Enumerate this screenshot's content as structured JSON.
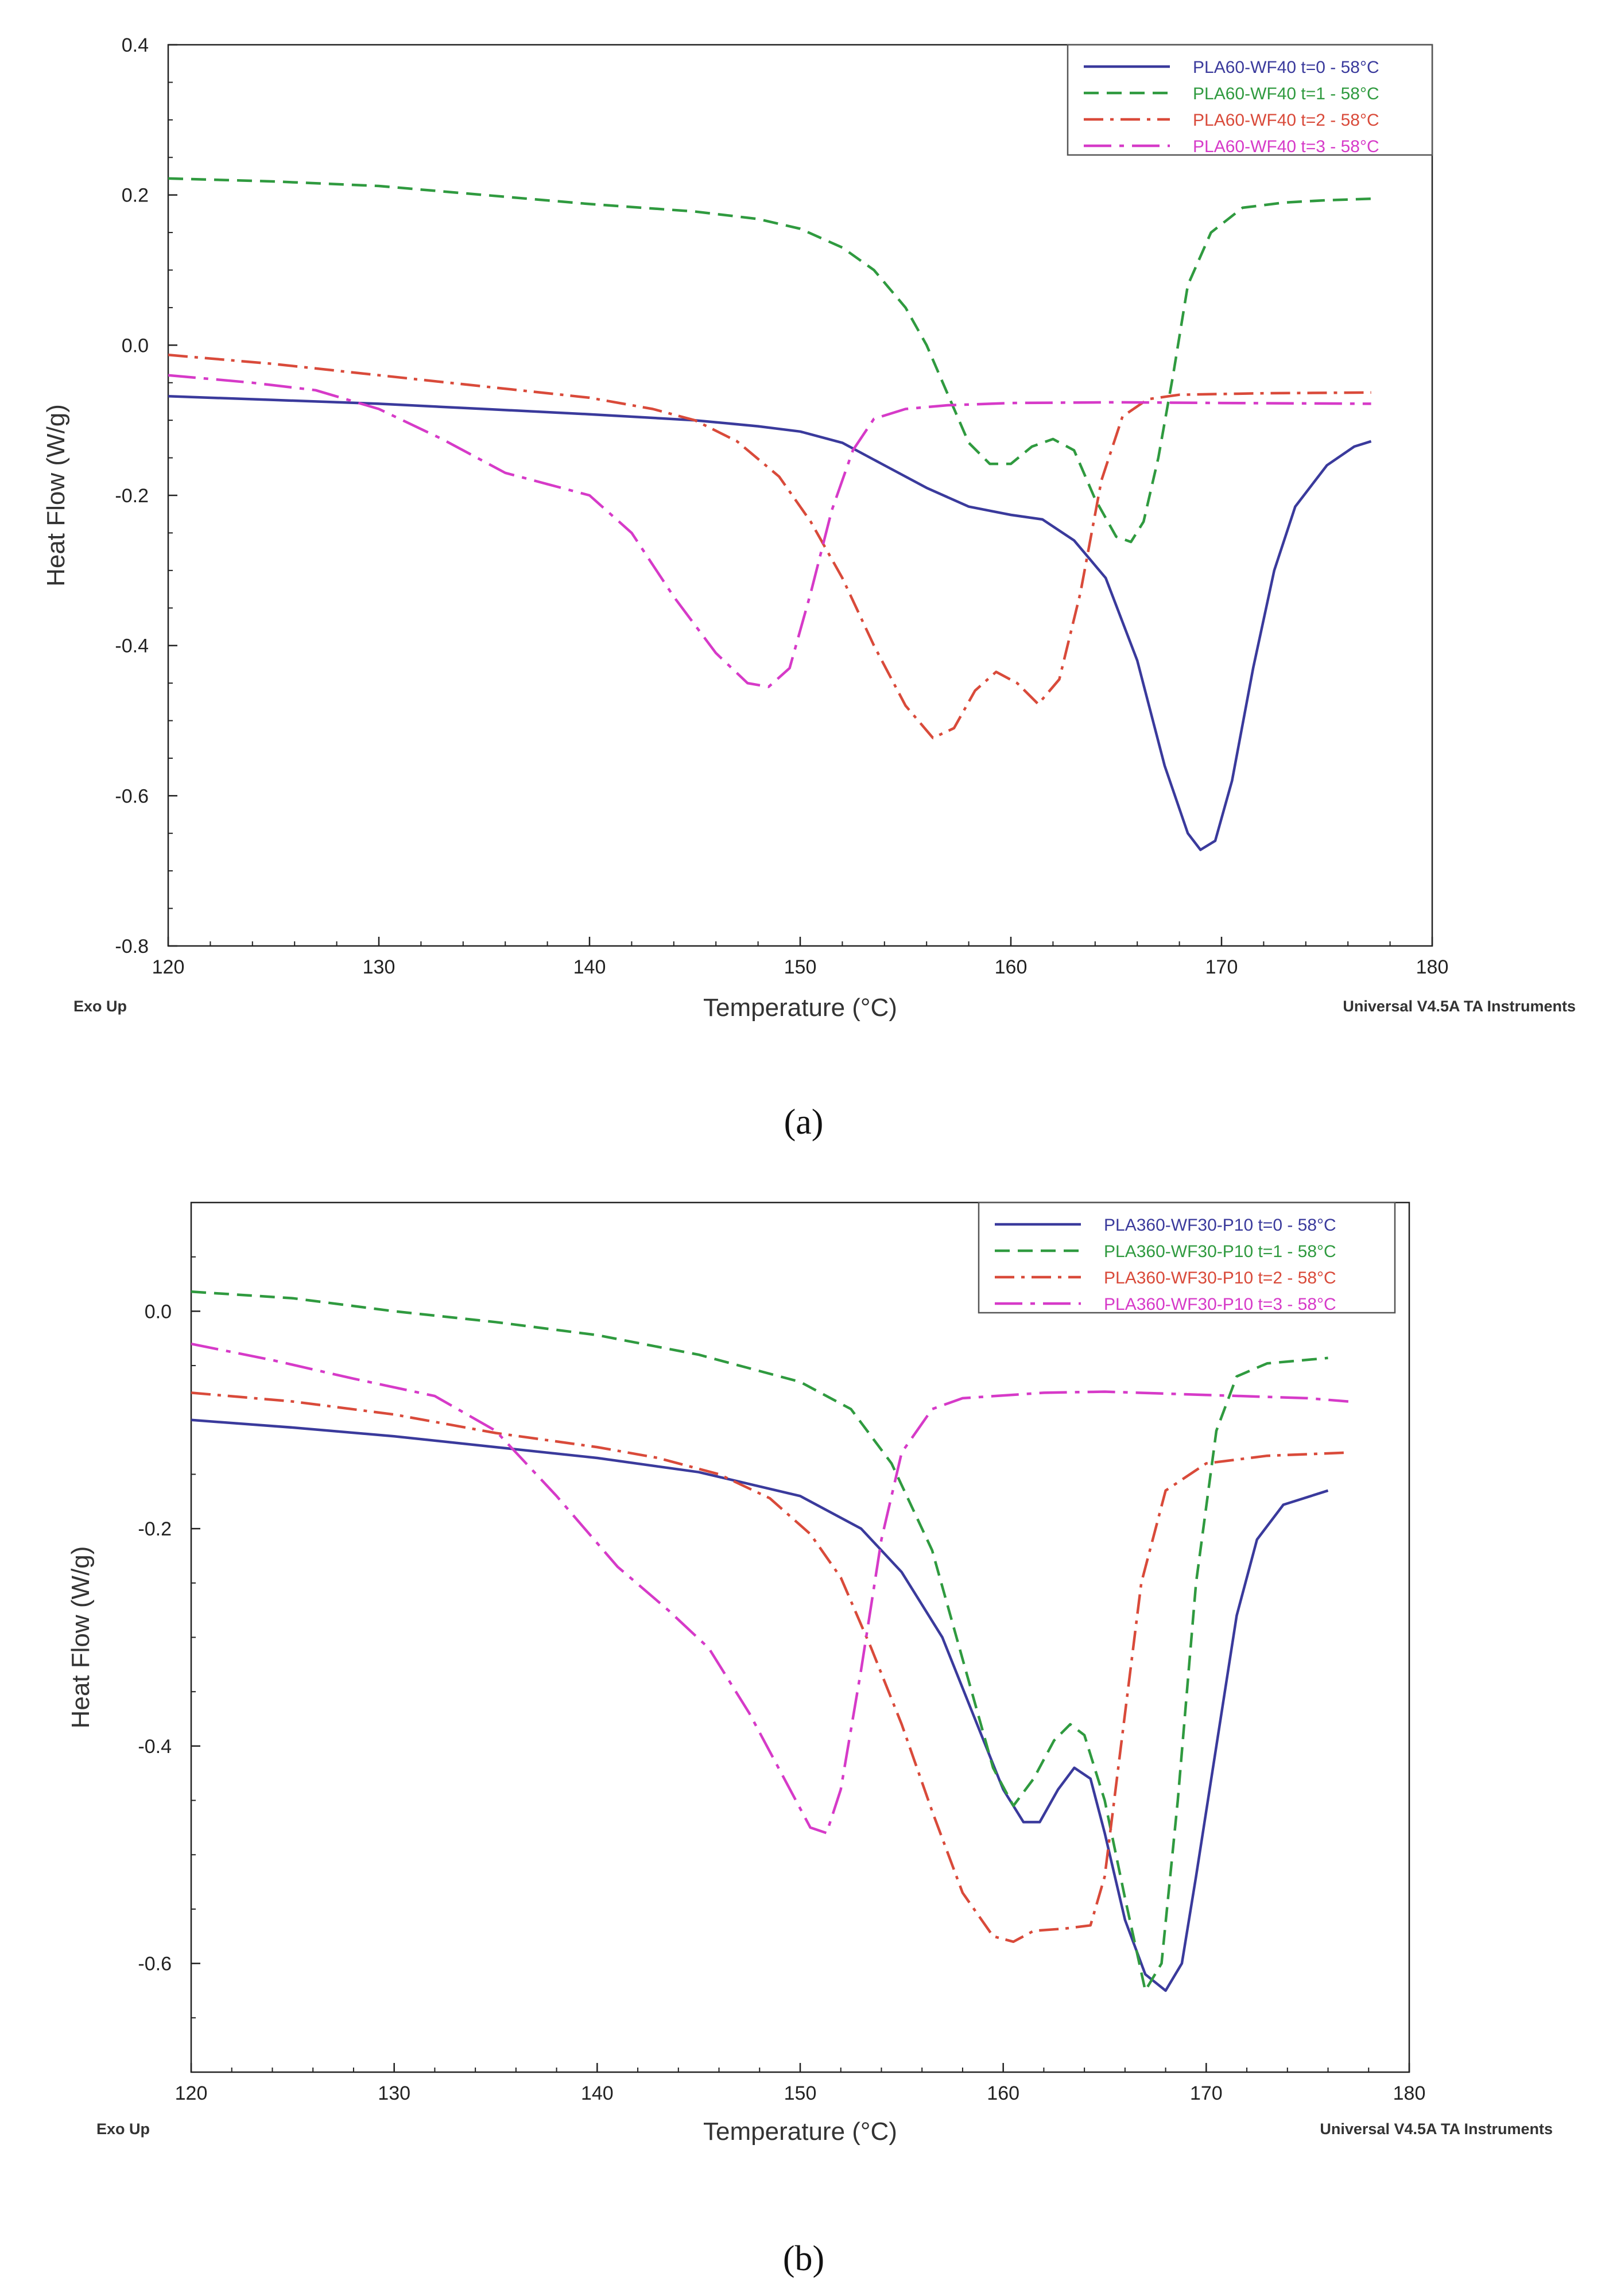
{
  "chart_data": [
    {
      "type": "line",
      "panel_label": "a",
      "caption": "(a)",
      "xlabel": "Temperature (°C)",
      "ylabel": "Heat Flow (W/g)",
      "xlim": [
        120,
        180
      ],
      "ylim": [
        -0.8,
        0.4
      ],
      "xticks": [
        120,
        130,
        140,
        150,
        160,
        170,
        180
      ],
      "yticks": [
        -0.8,
        -0.6,
        -0.4,
        -0.2,
        0.0,
        0.2,
        0.4
      ],
      "ytick_labels": [
        "-0.8",
        "-0.6",
        "-0.4",
        "-0.2",
        "0.0",
        "0.2",
        "0.4"
      ],
      "grid": false,
      "legend": "top-right",
      "footer_left": "Exo Up",
      "footer_right": "Universal V4.5A TA Instruments",
      "series": [
        {
          "name": "PLA60-WF40 t=0 - 58°C",
          "color": "#3a3a9c",
          "dash": "solid",
          "points": [
            [
              120,
              -0.068
            ],
            [
              125,
              -0.073
            ],
            [
              130,
              -0.078
            ],
            [
              135,
              -0.085
            ],
            [
              140,
              -0.092
            ],
            [
              145,
              -0.1
            ],
            [
              148,
              -0.108
            ],
            [
              150,
              -0.115
            ],
            [
              152,
              -0.13
            ],
            [
              154,
              -0.16
            ],
            [
              156,
              -0.19
            ],
            [
              158,
              -0.215
            ],
            [
              160,
              -0.226
            ],
            [
              161.5,
              -0.232
            ],
            [
              163,
              -0.26
            ],
            [
              164.5,
              -0.31
            ],
            [
              166,
              -0.42
            ],
            [
              167.3,
              -0.56
            ],
            [
              168.4,
              -0.65
            ],
            [
              169,
              -0.672
            ],
            [
              169.7,
              -0.66
            ],
            [
              170.5,
              -0.58
            ],
            [
              171.5,
              -0.43
            ],
            [
              172.5,
              -0.3
            ],
            [
              173.5,
              -0.215
            ],
            [
              175,
              -0.16
            ],
            [
              176.3,
              -0.135
            ],
            [
              177.1,
              -0.128
            ]
          ]
        },
        {
          "name": "PLA60-WF40 t=1 - 58°C",
          "color": "#2f9a3f",
          "dash": "dashed",
          "points": [
            [
              120,
              0.222
            ],
            [
              125,
              0.218
            ],
            [
              130,
              0.212
            ],
            [
              135,
              0.2
            ],
            [
              140,
              0.188
            ],
            [
              145,
              0.178
            ],
            [
              148,
              0.168
            ],
            [
              150,
              0.155
            ],
            [
              152,
              0.13
            ],
            [
              153.5,
              0.1
            ],
            [
              155,
              0.05
            ],
            [
              156,
              0.0
            ],
            [
              157,
              -0.065
            ],
            [
              158,
              -0.13
            ],
            [
              159,
              -0.158
            ],
            [
              160,
              -0.158
            ],
            [
              161,
              -0.135
            ],
            [
              162,
              -0.125
            ],
            [
              163,
              -0.14
            ],
            [
              164,
              -0.205
            ],
            [
              165,
              -0.255
            ],
            [
              165.7,
              -0.262
            ],
            [
              166.3,
              -0.235
            ],
            [
              167,
              -0.15
            ],
            [
              167.7,
              -0.04
            ],
            [
              168.4,
              0.08
            ],
            [
              169.5,
              0.15
            ],
            [
              171,
              0.183
            ],
            [
              173,
              0.19
            ],
            [
              175,
              0.193
            ],
            [
              177.1,
              0.195
            ]
          ]
        },
        {
          "name": "PLA60-WF40 t=2 - 58°C",
          "color": "#d94a3a",
          "dash": "dashdot",
          "points": [
            [
              120,
              -0.013
            ],
            [
              125,
              -0.025
            ],
            [
              130,
              -0.04
            ],
            [
              135,
              -0.055
            ],
            [
              140,
              -0.07
            ],
            [
              143,
              -0.085
            ],
            [
              145,
              -0.1
            ],
            [
              147,
              -0.128
            ],
            [
              149,
              -0.175
            ],
            [
              150.5,
              -0.235
            ],
            [
              152,
              -0.31
            ],
            [
              153.5,
              -0.4
            ],
            [
              155,
              -0.48
            ],
            [
              156.3,
              -0.523
            ],
            [
              157.3,
              -0.51
            ],
            [
              158.3,
              -0.46
            ],
            [
              159.3,
              -0.435
            ],
            [
              160.3,
              -0.45
            ],
            [
              161.3,
              -0.478
            ],
            [
              162.3,
              -0.445
            ],
            [
              163.3,
              -0.33
            ],
            [
              164.3,
              -0.18
            ],
            [
              165.3,
              -0.095
            ],
            [
              166.5,
              -0.072
            ],
            [
              168,
              -0.066
            ],
            [
              172,
              -0.064
            ],
            [
              177.1,
              -0.063
            ]
          ]
        },
        {
          "name": "PLA60-WF40 t=3 - 58°C",
          "color": "#d63ac8",
          "dash": "longdashdot",
          "points": [
            [
              120,
              -0.04
            ],
            [
              124,
              -0.05
            ],
            [
              127,
              -0.06
            ],
            [
              130,
              -0.085
            ],
            [
              133,
              -0.125
            ],
            [
              136,
              -0.17
            ],
            [
              138,
              -0.185
            ],
            [
              140,
              -0.2
            ],
            [
              142,
              -0.25
            ],
            [
              144,
              -0.335
            ],
            [
              146,
              -0.41
            ],
            [
              147.5,
              -0.45
            ],
            [
              148.5,
              -0.455
            ],
            [
              149.5,
              -0.43
            ],
            [
              150.5,
              -0.33
            ],
            [
              151.5,
              -0.22
            ],
            [
              152.5,
              -0.14
            ],
            [
              153.5,
              -0.098
            ],
            [
              155,
              -0.085
            ],
            [
              157,
              -0.08
            ],
            [
              160,
              -0.077
            ],
            [
              165,
              -0.076
            ],
            [
              170,
              -0.077
            ],
            [
              177.1,
              -0.078
            ]
          ]
        }
      ]
    },
    {
      "type": "line",
      "panel_label": "b",
      "caption": "(b)",
      "xlabel": "Temperature (°C)",
      "ylabel": "Heat Flow (W/g)",
      "xlim": [
        120,
        180
      ],
      "ylim": [
        -0.7,
        0.1
      ],
      "xticks": [
        120,
        130,
        140,
        150,
        160,
        170,
        180
      ],
      "yticks": [
        -0.6,
        -0.4,
        -0.2,
        0.0
      ],
      "ytick_labels": [
        "-0.6",
        "-0.4",
        "-0.2",
        "0.0"
      ],
      "grid": false,
      "legend": "top-right",
      "footer_left": "Exo Up",
      "footer_right": "Universal V4.5A TA Instruments",
      "series": [
        {
          "name": "PLA360-WF30-P10 t=0 - 58°C",
          "color": "#3a3a9c",
          "dash": "solid",
          "points": [
            [
              120,
              -0.1
            ],
            [
              125,
              -0.107
            ],
            [
              130,
              -0.115
            ],
            [
              135,
              -0.125
            ],
            [
              140,
              -0.135
            ],
            [
              145,
              -0.148
            ],
            [
              150,
              -0.17
            ],
            [
              153,
              -0.2
            ],
            [
              155,
              -0.24
            ],
            [
              157,
              -0.3
            ],
            [
              158.5,
              -0.37
            ],
            [
              160,
              -0.44
            ],
            [
              161,
              -0.47
            ],
            [
              161.8,
              -0.47
            ],
            [
              162.7,
              -0.44
            ],
            [
              163.5,
              -0.42
            ],
            [
              164.3,
              -0.43
            ],
            [
              165,
              -0.48
            ],
            [
              166,
              -0.56
            ],
            [
              167,
              -0.61
            ],
            [
              168,
              -0.625
            ],
            [
              168.8,
              -0.6
            ],
            [
              169.5,
              -0.52
            ],
            [
              170.5,
              -0.4
            ],
            [
              171.5,
              -0.28
            ],
            [
              172.5,
              -0.21
            ],
            [
              173.8,
              -0.178
            ],
            [
              176,
              -0.165
            ]
          ]
        },
        {
          "name": "PLA360-WF30-P10 t=1 - 58°C",
          "color": "#2f9a3f",
          "dash": "dashed",
          "points": [
            [
              120,
              0.018
            ],
            [
              125,
              0.012
            ],
            [
              130,
              0.0
            ],
            [
              135,
              -0.01
            ],
            [
              140,
              -0.022
            ],
            [
              145,
              -0.04
            ],
            [
              150,
              -0.065
            ],
            [
              152.5,
              -0.09
            ],
            [
              154.5,
              -0.14
            ],
            [
              156.5,
              -0.22
            ],
            [
              158,
              -0.32
            ],
            [
              159.5,
              -0.42
            ],
            [
              160.5,
              -0.455
            ],
            [
              161.5,
              -0.43
            ],
            [
              162.5,
              -0.395
            ],
            [
              163.3,
              -0.38
            ],
            [
              164,
              -0.39
            ],
            [
              165,
              -0.45
            ],
            [
              166,
              -0.54
            ],
            [
              167,
              -0.625
            ],
            [
              167.8,
              -0.6
            ],
            [
              168.6,
              -0.45
            ],
            [
              169.5,
              -0.25
            ],
            [
              170.5,
              -0.11
            ],
            [
              171.5,
              -0.06
            ],
            [
              173,
              -0.048
            ],
            [
              176,
              -0.043
            ]
          ]
        },
        {
          "name": "PLA360-WF30-P10 t=2 - 58°C",
          "color": "#d94a3a",
          "dash": "dashdot",
          "points": [
            [
              120,
              -0.075
            ],
            [
              125,
              -0.083
            ],
            [
              130,
              -0.095
            ],
            [
              135,
              -0.112
            ],
            [
              140,
              -0.125
            ],
            [
              143,
              -0.135
            ],
            [
              146,
              -0.15
            ],
            [
              148.5,
              -0.172
            ],
            [
              150.5,
              -0.205
            ],
            [
              152,
              -0.245
            ],
            [
              153.5,
              -0.31
            ],
            [
              155,
              -0.38
            ],
            [
              156.5,
              -0.46
            ],
            [
              158,
              -0.535
            ],
            [
              159.5,
              -0.575
            ],
            [
              160.5,
              -0.58
            ],
            [
              161.5,
              -0.57
            ],
            [
              163,
              -0.568
            ],
            [
              164.3,
              -0.565
            ],
            [
              165,
              -0.52
            ],
            [
              165.8,
              -0.4
            ],
            [
              166.8,
              -0.25
            ],
            [
              168,
              -0.165
            ],
            [
              170,
              -0.14
            ],
            [
              173,
              -0.133
            ],
            [
              177,
              -0.13
            ]
          ]
        },
        {
          "name": "PLA360-WF30-P10 t=3 - 58°C",
          "color": "#d63ac8",
          "dash": "longdashdot",
          "points": [
            [
              120,
              -0.03
            ],
            [
              124,
              -0.045
            ],
            [
              128,
              -0.062
            ],
            [
              132,
              -0.078
            ],
            [
              135,
              -0.11
            ],
            [
              138,
              -0.17
            ],
            [
              141,
              -0.235
            ],
            [
              143.5,
              -0.275
            ],
            [
              145.5,
              -0.31
            ],
            [
              147.5,
              -0.37
            ],
            [
              149.5,
              -0.44
            ],
            [
              150.5,
              -0.475
            ],
            [
              151.3,
              -0.48
            ],
            [
              152,
              -0.44
            ],
            [
              153,
              -0.33
            ],
            [
              154,
              -0.21
            ],
            [
              155,
              -0.13
            ],
            [
              156.5,
              -0.09
            ],
            [
              158,
              -0.08
            ],
            [
              162,
              -0.075
            ],
            [
              165,
              -0.074
            ],
            [
              170,
              -0.077
            ],
            [
              175,
              -0.08
            ],
            [
              177,
              -0.083
            ]
          ]
        }
      ]
    }
  ]
}
